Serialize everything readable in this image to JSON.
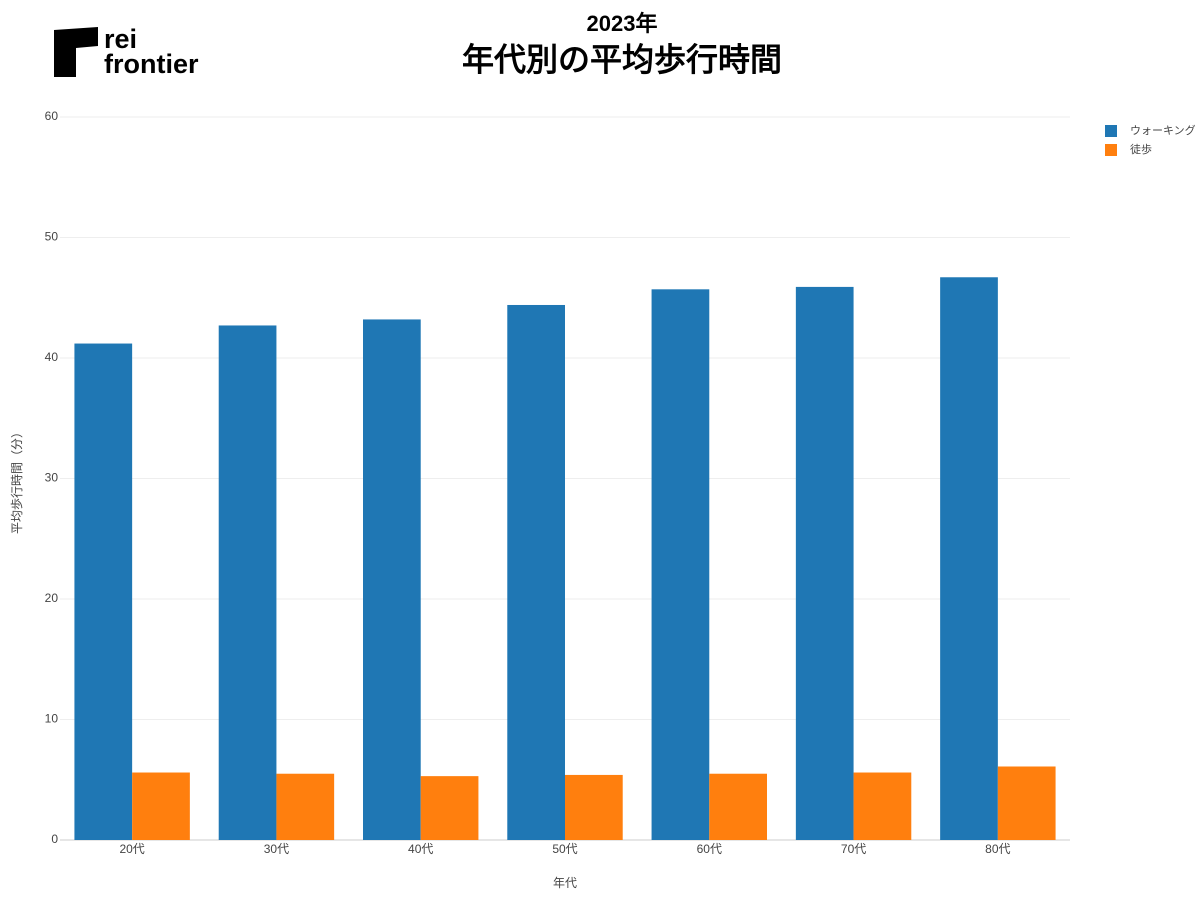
{
  "logo": {
    "lines": [
      "rei",
      "frontier"
    ]
  },
  "chart_data": {
    "type": "bar",
    "title": "2023年",
    "subtitle": "年代別の平均歩行時間",
    "x_label": "年代",
    "y_label": "平均歩行時間（分）",
    "categories": [
      "20代",
      "30代",
      "40代",
      "50代",
      "60代",
      "70代",
      "80代"
    ],
    "series": [
      {
        "name": "ウォーキング",
        "color": "#1f77b4",
        "values": [
          41.2,
          42.7,
          43.2,
          44.4,
          45.7,
          45.9,
          46.7
        ]
      },
      {
        "name": "徒歩",
        "color": "#ff7f0e",
        "values": [
          5.6,
          5.5,
          5.3,
          5.4,
          5.5,
          5.6,
          6.1
        ]
      }
    ],
    "ylim": [
      0,
      60
    ],
    "yticks": [
      0,
      10,
      20,
      30,
      40,
      50,
      60
    ],
    "grid": true,
    "legend": "top-right"
  }
}
